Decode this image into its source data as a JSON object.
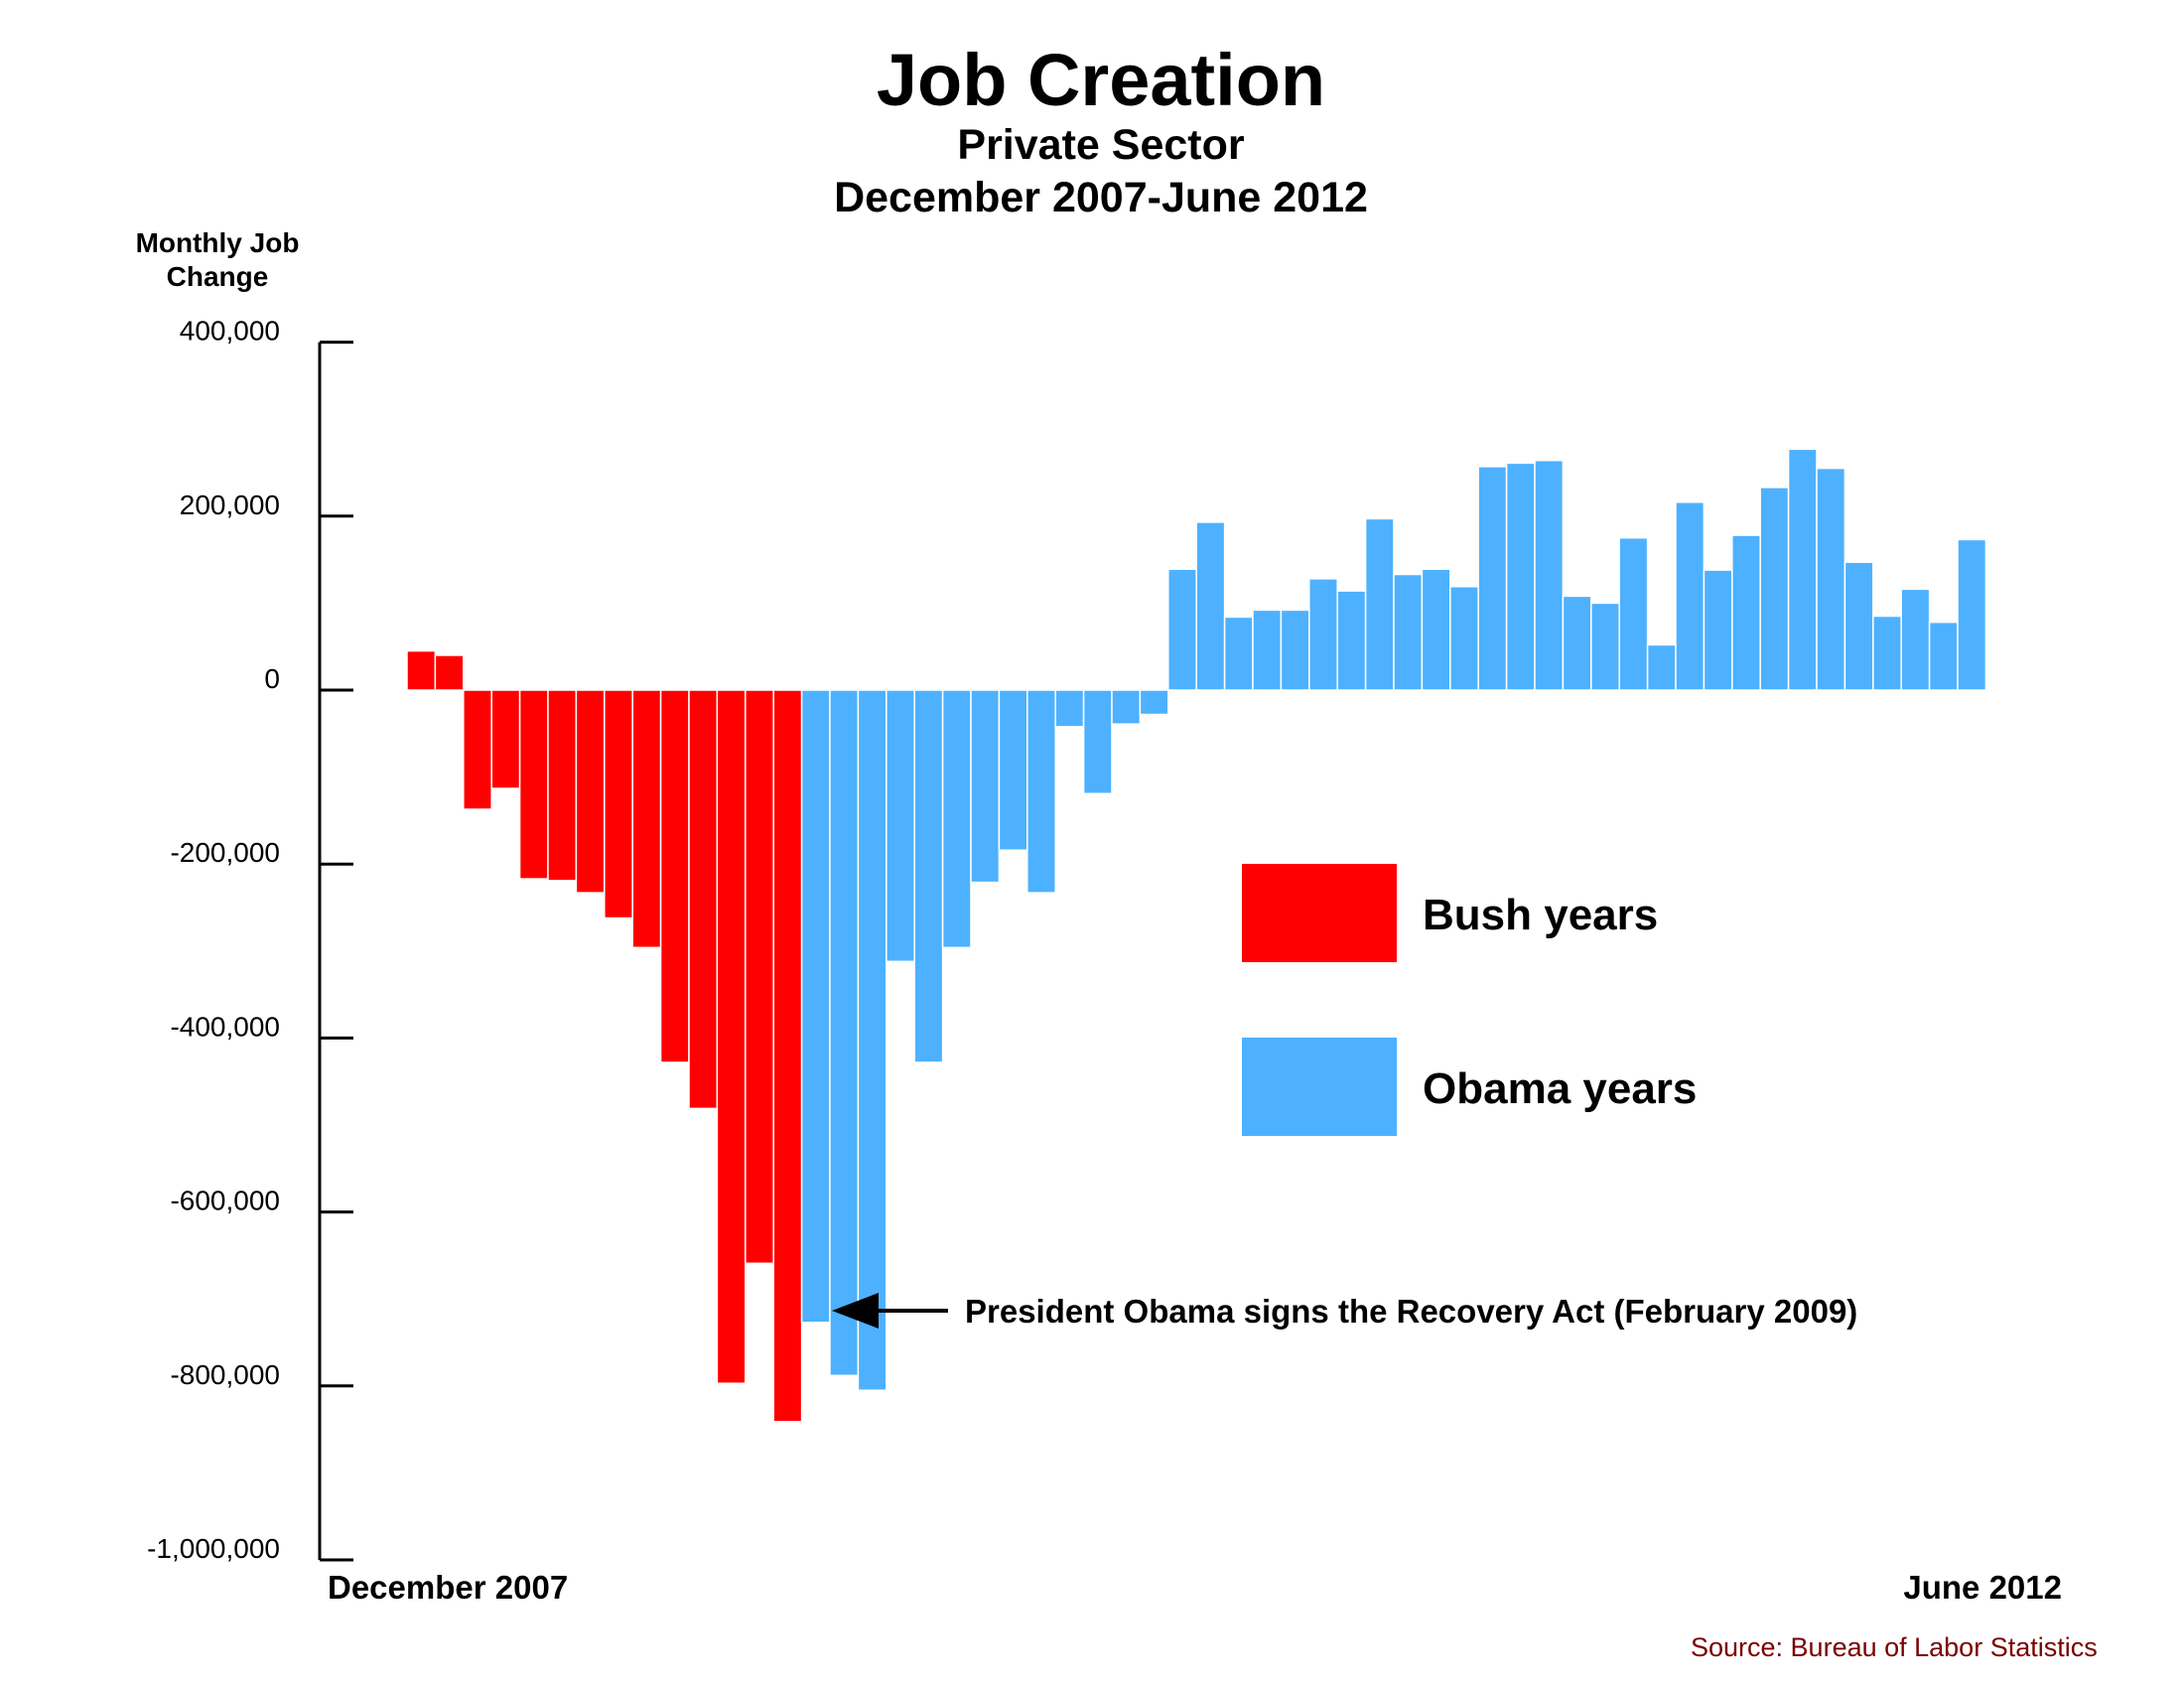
{
  "colors": {
    "bush": "#ff0000",
    "obama": "#4db1ff"
  },
  "legend": {
    "bush_label": "Bush years",
    "obama_label": "Obama years"
  },
  "annotation": {
    "text": "President Obama signs the Recovery Act (February 2009)"
  },
  "source": "Source: Bureau of Labor Statistics",
  "chart_data": {
    "type": "bar",
    "title": "Job Creation",
    "subtitle": [
      "Private Sector",
      "December 2007-June 2012"
    ],
    "ylabel_lines": [
      "Monthly Job",
      "Change"
    ],
    "ylim": [
      -1000000,
      400000
    ],
    "yticks": [
      400000,
      200000,
      0,
      -200000,
      -400000,
      -600000,
      -800000,
      -1000000
    ],
    "ytick_labels": [
      "400,000",
      "200,000",
      "0",
      "-200,000",
      "-400,000",
      "-600,000",
      "-800,000",
      "-1,000,000"
    ],
    "x_start_label": "December 2007",
    "x_end_label": "June 2012",
    "series": [
      {
        "name": "Bush years",
        "values": [
          45000,
          40000,
          -137000,
          -113000,
          -217000,
          -219000,
          -233000,
          -262000,
          -296000,
          -428000,
          -481000,
          -797000,
          -659000,
          -841000
        ]
      },
      {
        "name": "Obama years",
        "values": [
          -727000,
          -788000,
          -805000,
          -312000,
          -428000,
          -296000,
          -221000,
          -184000,
          -233000,
          -42000,
          -119000,
          -39000,
          -28000,
          139000,
          193000,
          84000,
          92000,
          92000,
          128000,
          114000,
          197000,
          133000,
          139000,
          119000,
          257000,
          261000,
          264000,
          108000,
          100000,
          175000,
          52000,
          216000,
          138000,
          178000,
          233000,
          277000,
          255000,
          147000,
          85000,
          116000,
          78000,
          173000
        ]
      }
    ]
  }
}
